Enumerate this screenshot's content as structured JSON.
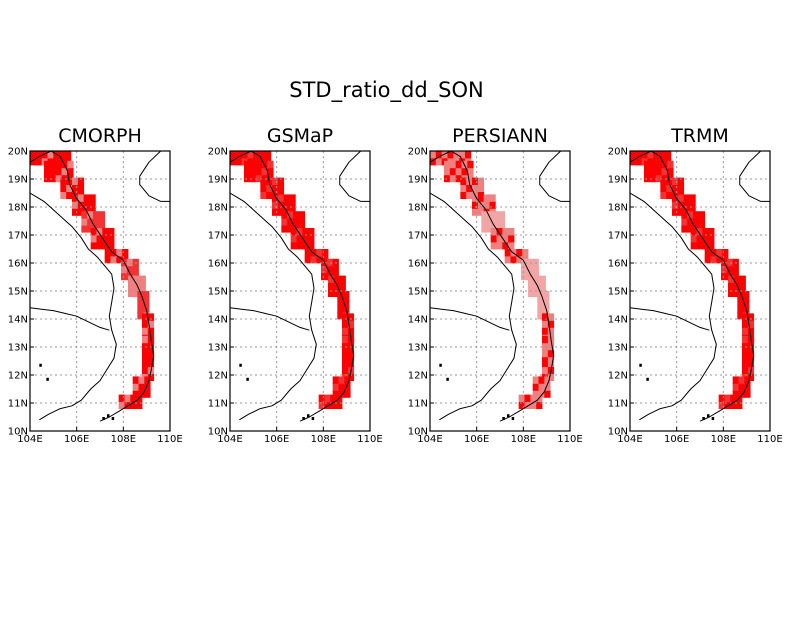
{
  "figure_title": "STD_ratio_dd_SON",
  "panels": [
    {
      "name": "CMORPH",
      "intensity": "mixed"
    },
    {
      "name": "GSMaP",
      "intensity": "strong"
    },
    {
      "name": "PERSIANN",
      "intensity": "light"
    },
    {
      "name": "TRMM",
      "intensity": "strong"
    }
  ],
  "x_ticks": [
    "104E",
    "106E",
    "108E",
    "110E"
  ],
  "y_ticks": [
    "10N",
    "11N",
    "12N",
    "13N",
    "14N",
    "15N",
    "16N",
    "17N",
    "18N",
    "19N",
    "20N"
  ],
  "colors": {
    "strong": "#ff0000",
    "medium": "#f33333",
    "light": "#ef8080",
    "pale": "#f2a5a5",
    "grid": "#999999"
  }
}
